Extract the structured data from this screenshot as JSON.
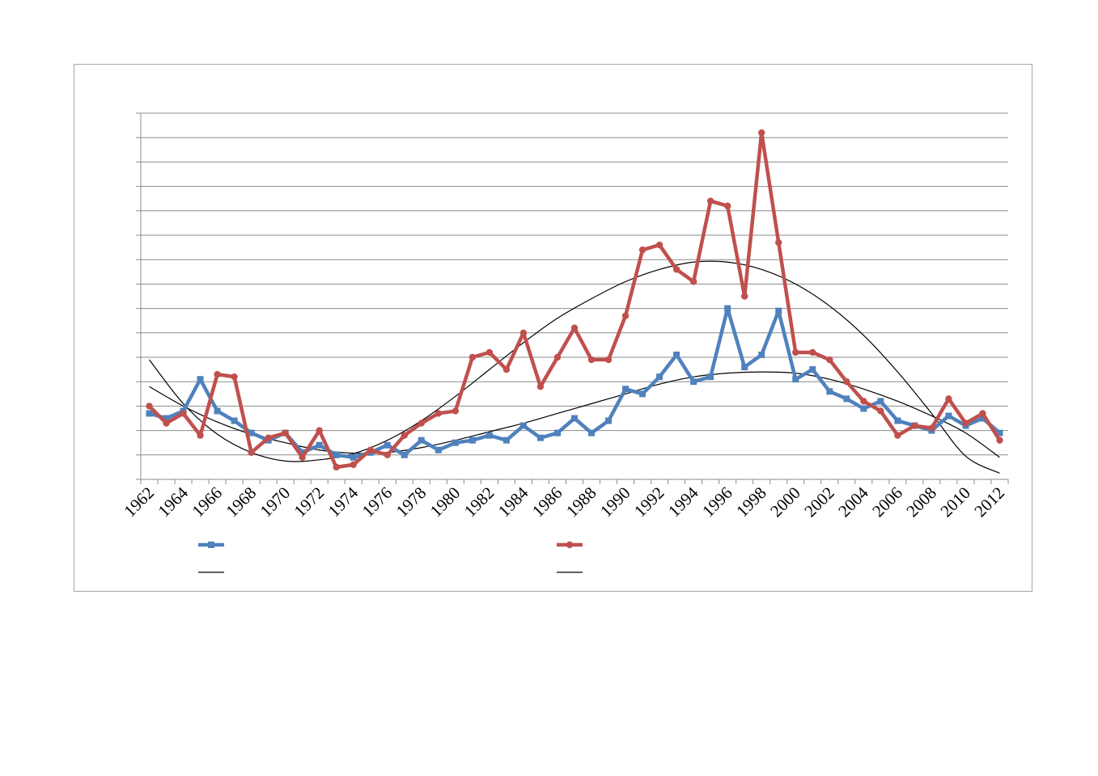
{
  "chart_data": {
    "type": "line",
    "title": "",
    "xlabel": "",
    "ylabel": "",
    "x": [
      1962,
      1963,
      1964,
      1965,
      1966,
      1967,
      1968,
      1969,
      1970,
      1971,
      1972,
      1973,
      1974,
      1975,
      1976,
      1977,
      1978,
      1979,
      1980,
      1981,
      1982,
      1983,
      1984,
      1985,
      1986,
      1987,
      1988,
      1989,
      1990,
      1991,
      1992,
      1993,
      1994,
      1995,
      1996,
      1997,
      1998,
      1999,
      2000,
      2001,
      2002,
      2003,
      2004,
      2005,
      2006,
      2007,
      2008,
      2009,
      2010,
      2011,
      2012
    ],
    "xticks": [
      "1962",
      "1964",
      "1966",
      "1968",
      "1970",
      "1972",
      "1974",
      "1976",
      "1978",
      "1980",
      "1982",
      "1984",
      "1986",
      "1988",
      "1990",
      "1992",
      "1994",
      "1996",
      "1998",
      "2000",
      "2002",
      "2004",
      "2006",
      "2008",
      "2010",
      "2012"
    ],
    "ylim": [
      0,
      15
    ],
    "y_gridlines": 15,
    "grid": "horizontal",
    "y_tick_labels_visible": false,
    "legend": "bottom",
    "series": [
      {
        "color": "#4f81bd",
        "marker": "square",
        "values": [
          2.7,
          2.5,
          2.8,
          4.1,
          2.8,
          2.4,
          1.9,
          1.6,
          1.9,
          1.1,
          1.4,
          1.0,
          0.9,
          1.1,
          1.4,
          1.0,
          1.6,
          1.2,
          1.5,
          1.6,
          1.8,
          1.6,
          2.2,
          1.7,
          1.9,
          2.5,
          1.9,
          2.4,
          3.7,
          3.5,
          4.2,
          5.1,
          4.0,
          4.2,
          7.0,
          4.6,
          5.1,
          6.9,
          4.1,
          4.5,
          3.6,
          3.3,
          2.9,
          3.2,
          2.4,
          2.2,
          2.0,
          2.6,
          2.2,
          2.5,
          1.9
        ]
      },
      {
        "color": "#c0504d",
        "marker": "circle",
        "values": [
          3.0,
          2.3,
          2.7,
          1.8,
          4.3,
          4.2,
          1.1,
          1.7,
          1.9,
          0.9,
          2.0,
          0.5,
          0.6,
          1.2,
          1.0,
          1.8,
          2.3,
          2.7,
          2.8,
          5.0,
          5.2,
          4.5,
          6.0,
          3.8,
          5.0,
          6.2,
          4.9,
          4.9,
          6.7,
          9.4,
          9.6,
          8.6,
          8.1,
          11.4,
          11.2,
          7.5,
          14.2,
          9.7,
          5.2,
          5.2,
          4.9,
          4.0,
          3.2,
          2.8,
          1.8,
          2.2,
          2.1,
          3.3,
          2.3,
          2.7,
          1.6
        ]
      }
    ],
    "trendlines": [
      {
        "color": "#000000",
        "points": [
          [
            1962,
            3.8
          ],
          [
            1964,
            3.0
          ],
          [
            1966,
            2.35
          ],
          [
            1968,
            1.85
          ],
          [
            1970,
            1.5
          ],
          [
            1972,
            1.2
          ],
          [
            1974,
            1.07
          ],
          [
            1976,
            1.1
          ],
          [
            1978,
            1.3
          ],
          [
            1980,
            1.6
          ],
          [
            1982,
            1.95
          ],
          [
            1984,
            2.3
          ],
          [
            1986,
            2.7
          ],
          [
            1988,
            3.1
          ],
          [
            1990,
            3.5
          ],
          [
            1992,
            3.9
          ],
          [
            1994,
            4.2
          ],
          [
            1996,
            4.35
          ],
          [
            1998,
            4.4
          ],
          [
            2000,
            4.35
          ],
          [
            2002,
            4.1
          ],
          [
            2004,
            3.7
          ],
          [
            2006,
            3.2
          ],
          [
            2008,
            2.6
          ],
          [
            2010,
            1.9
          ],
          [
            2012,
            0.9
          ]
        ]
      },
      {
        "color": "#000000",
        "points": [
          [
            1962,
            4.9
          ],
          [
            1964,
            3.1
          ],
          [
            1966,
            1.85
          ],
          [
            1968,
            1.1
          ],
          [
            1970,
            0.75
          ],
          [
            1972,
            0.8
          ],
          [
            1974,
            1.05
          ],
          [
            1976,
            1.6
          ],
          [
            1978,
            2.4
          ],
          [
            1980,
            3.4
          ],
          [
            1982,
            4.5
          ],
          [
            1984,
            5.6
          ],
          [
            1986,
            6.6
          ],
          [
            1988,
            7.4
          ],
          [
            1990,
            8.1
          ],
          [
            1992,
            8.6
          ],
          [
            1994,
            8.9
          ],
          [
            1996,
            8.9
          ],
          [
            1998,
            8.6
          ],
          [
            2000,
            8.0
          ],
          [
            2002,
            7.1
          ],
          [
            2004,
            5.9
          ],
          [
            2006,
            4.4
          ],
          [
            2008,
            2.7
          ],
          [
            2010,
            0.95
          ],
          [
            2012,
            0.25
          ]
        ]
      }
    ]
  }
}
